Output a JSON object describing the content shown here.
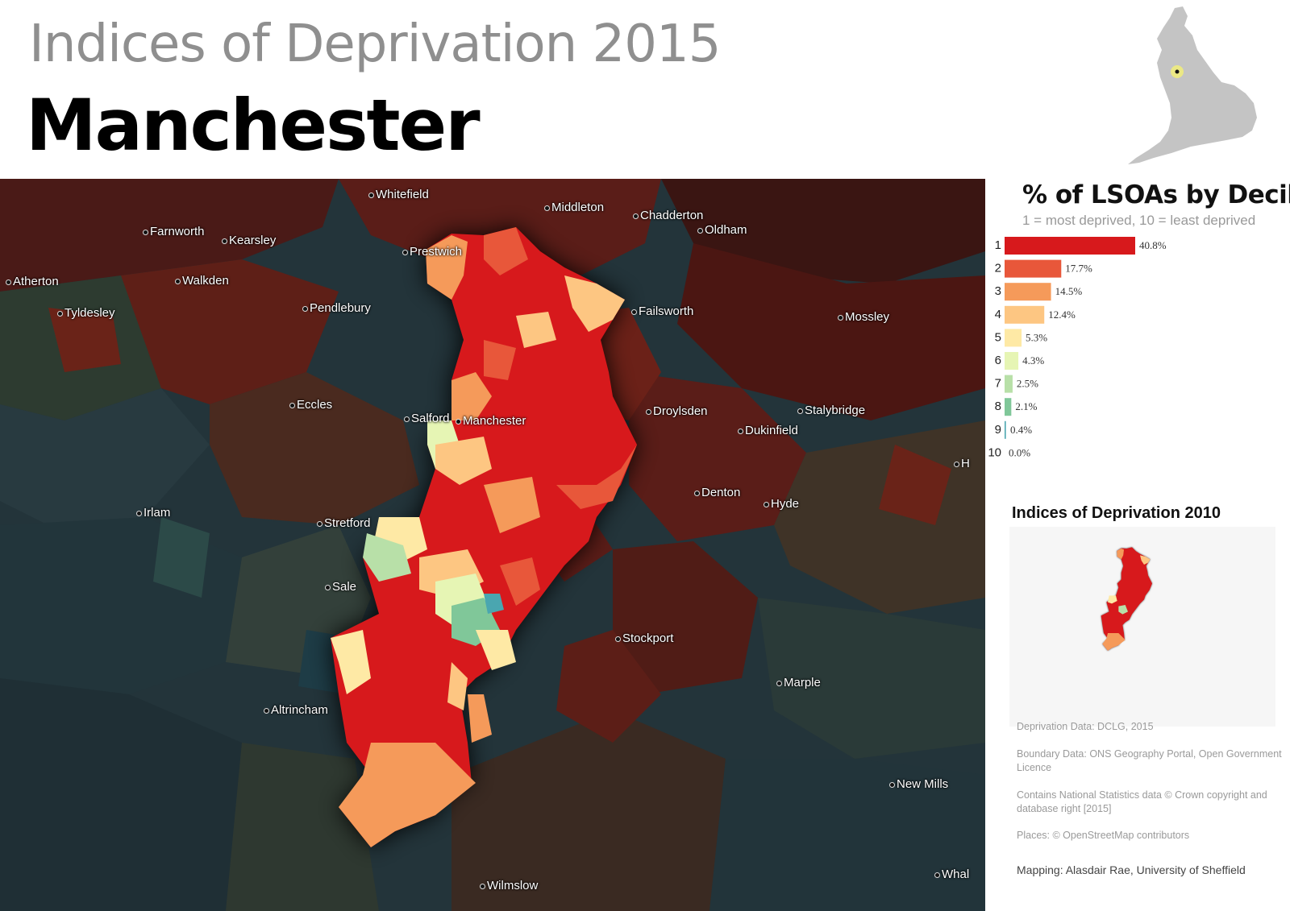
{
  "header": {
    "subtitle": "Indices of Deprivation 2015",
    "title": "Manchester"
  },
  "locator": {
    "icon": "england-locator-map-icon",
    "land_color": "#c4c4c4",
    "highlight_color": "#f2ee7a"
  },
  "map": {
    "icon": "deprivation-choropleth-map",
    "places": [
      {
        "name": "Whitefield"
      },
      {
        "name": "Middleton"
      },
      {
        "name": "Chadderton"
      },
      {
        "name": "Oldham"
      },
      {
        "name": "Farnworth"
      },
      {
        "name": "Kearsley"
      },
      {
        "name": "Prestwich"
      },
      {
        "name": "Atherton"
      },
      {
        "name": "Walkden"
      },
      {
        "name": "Tyldesley"
      },
      {
        "name": "Pendlebury"
      },
      {
        "name": "Failsworth"
      },
      {
        "name": "Mossley"
      },
      {
        "name": "Eccles"
      },
      {
        "name": "Salford"
      },
      {
        "name": "Manchester"
      },
      {
        "name": "Droylsden"
      },
      {
        "name": "Stalybridge"
      },
      {
        "name": "Dukinfield"
      },
      {
        "name": "Irlam"
      },
      {
        "name": "Denton"
      },
      {
        "name": "Hyde"
      },
      {
        "name": "Stretford"
      },
      {
        "name": "Sale"
      },
      {
        "name": "Stockport"
      },
      {
        "name": "Marple"
      },
      {
        "name": "Altrincham"
      },
      {
        "name": "New Mills"
      },
      {
        "name": "Wilmslow"
      },
      {
        "name": "Whal"
      },
      {
        "name": "H"
      }
    ]
  },
  "chart_data": {
    "type": "bar",
    "title": "% of LSOAs by Decile",
    "subtitle": "1 = most deprived, 10 = least deprived",
    "categories": [
      "1",
      "2",
      "3",
      "4",
      "5",
      "6",
      "7",
      "8",
      "9",
      "10"
    ],
    "values": [
      40.8,
      17.7,
      14.5,
      12.4,
      5.3,
      4.3,
      2.5,
      2.1,
      0.4,
      0.0
    ],
    "value_labels": [
      "40.8%",
      "17.7%",
      "14.5%",
      "12.4%",
      "5.3%",
      "4.3%",
      "2.5%",
      "2.1%",
      "0.4%",
      "0.0%"
    ],
    "colors": [
      "#d7191c",
      "#e8573a",
      "#f59a5a",
      "#fdc682",
      "#fee9a5",
      "#e6f5b4",
      "#b8e0a8",
      "#80c799",
      "#4aa6b0",
      "#2b83ba"
    ],
    "orientation": "horizontal",
    "xlim": [
      0,
      40.8
    ]
  },
  "reference": {
    "title": "Indices of Deprivation 2010",
    "icon": "deprivation-2010-inset-map"
  },
  "credits": {
    "deprivation": "Deprivation Data: DCLG, 2015",
    "boundary": "Boundary Data: ONS Geography Portal, Open Government Licence",
    "statistics": "Contains National Statistics data © Crown copyright and database right [2015]",
    "places": "Places: © OpenStreetMap contributors",
    "mapping": "Mapping: Alasdair Rae, University of Sheffield"
  }
}
